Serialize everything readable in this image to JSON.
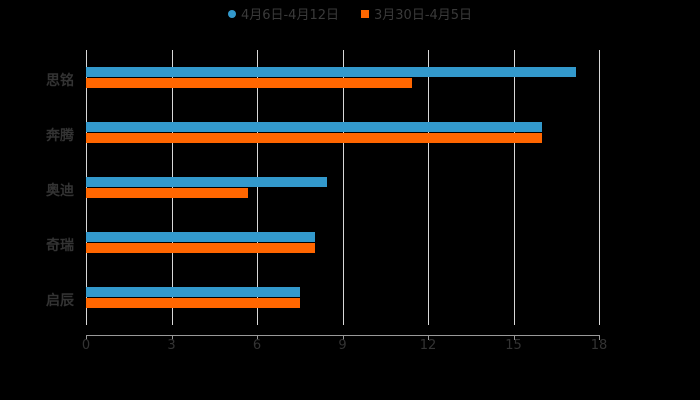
{
  "chart_data": {
    "type": "bar",
    "orientation": "horizontal",
    "title": "",
    "categories": [
      "思铭",
      "奔腾",
      "奥迪",
      "奇瑞",
      "启辰"
    ],
    "series": [
      {
        "name": "4月6日-4月12日",
        "color": "#3399cc",
        "values": [
          17.2,
          16.0,
          8.45,
          8.05,
          7.5
        ]
      },
      {
        "name": "3月30日-4月5日",
        "color": "#ff6600",
        "values": [
          11.45,
          16.0,
          5.7,
          8.05,
          7.5
        ]
      }
    ],
    "xlabel": "",
    "ylabel": "",
    "xlim": [
      0,
      18
    ],
    "xticks": [
      "0",
      "3",
      "6",
      "9",
      "12",
      "15",
      "18"
    ],
    "grid": true,
    "legend_position": "top"
  },
  "legend": [
    {
      "label": "4月6日-4月12日",
      "color": "#3399cc"
    },
    {
      "label": "3月30日-4月5日",
      "color": "#ff6600"
    }
  ]
}
